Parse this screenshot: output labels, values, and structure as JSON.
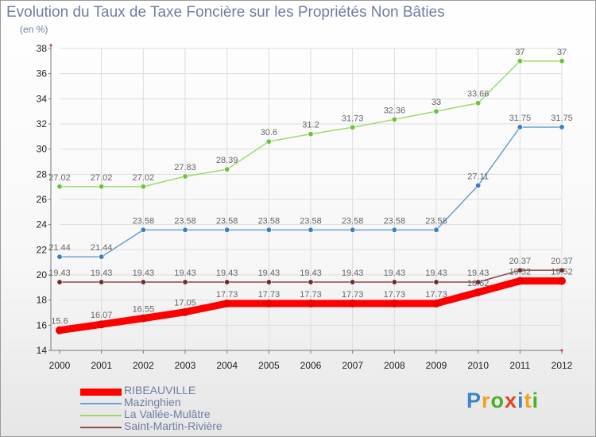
{
  "header": {
    "title": "Evolution du Taux de Taxe Foncière sur les Propriétés Non Bâties",
    "subtitle": "(en %)"
  },
  "logo": {
    "text": "Proxiti",
    "colors": [
      "#3a86c8",
      "#f0a21b",
      "#4caf2a",
      "#e2421e",
      "#3a86c8",
      "#f0a21b",
      "#4caf2a"
    ]
  },
  "chart_data": {
    "type": "line",
    "title": "Evolution du Taux de Taxe Foncière sur les Propriétés Non Bâties",
    "ylabel": "(en %)",
    "xlabel": "",
    "x": [
      "2000",
      "2001",
      "2002",
      "2003",
      "2004",
      "2005",
      "2006",
      "2007",
      "2008",
      "2009",
      "2010",
      "2011",
      "2012"
    ],
    "ylim": [
      14,
      38
    ],
    "yticks": [
      14,
      16,
      18,
      20,
      22,
      24,
      26,
      28,
      30,
      32,
      34,
      36,
      38
    ],
    "grid": true,
    "legend": "bottom-left",
    "series": [
      {
        "name": "RIBEAUVILLE",
        "color": "#ff0000",
        "marker_color": "#ee0000",
        "emphasis": true,
        "values": [
          15.6,
          16.07,
          16.55,
          17.05,
          17.73,
          17.73,
          17.73,
          17.73,
          17.73,
          17.73,
          18.62,
          19.52,
          19.52
        ],
        "labels": [
          "15.6",
          "16.07",
          "16.55",
          "17.05",
          "17.73",
          "17.73",
          "17.73",
          "17.73",
          "17.73",
          "17.73",
          "18.62",
          "19.52",
          "19.52"
        ]
      },
      {
        "name": "Mazinghien",
        "color": "#6ea0cc",
        "marker_color": "#3d7fc0",
        "values": [
          21.44,
          21.44,
          23.58,
          23.58,
          23.58,
          23.58,
          23.58,
          23.58,
          23.58,
          23.58,
          27.11,
          31.75,
          31.75
        ],
        "labels": [
          "21.44",
          "21.44",
          "23.58",
          "23.58",
          "23.58",
          "23.58",
          "23.58",
          "23.58",
          "23.58",
          "23.58",
          "27.11",
          "31.75",
          "31.75"
        ]
      },
      {
        "name": "La Vallée-Mulâtre",
        "color": "#9edb6c",
        "marker_color": "#6cc23a",
        "values": [
          27.02,
          27.02,
          27.02,
          27.83,
          28.39,
          30.6,
          31.2,
          31.73,
          32.36,
          33,
          33.66,
          37,
          37
        ],
        "labels": [
          "27.02",
          "27.02",
          "27.02",
          "27.83",
          "28.39",
          "30.6",
          "31.2",
          "31.73",
          "32.36",
          "33",
          "33.66",
          "37",
          "37"
        ]
      },
      {
        "name": "Saint-Martin-Rivière",
        "color": "#8a4a4a",
        "marker_color": "#6e2a2a",
        "values": [
          19.43,
          19.43,
          19.43,
          19.43,
          19.43,
          19.43,
          19.43,
          19.43,
          19.43,
          19.43,
          19.43,
          20.37,
          20.37
        ],
        "labels": [
          "19.43",
          "19.43",
          "19.43",
          "19.43",
          "19.43",
          "19.43",
          "19.43",
          "19.43",
          "19.43",
          "19.43",
          "19.43",
          "20.37",
          "20.37"
        ]
      }
    ]
  }
}
